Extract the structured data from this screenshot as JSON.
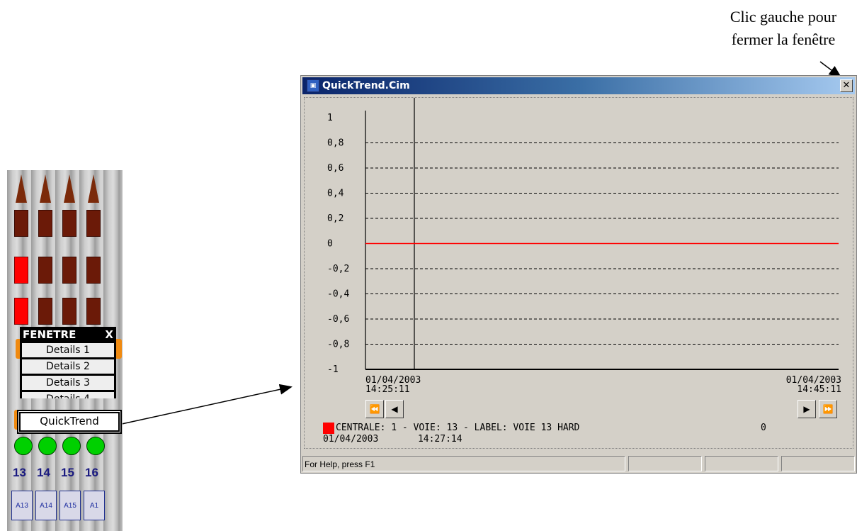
{
  "annotation": {
    "line1": "Clic gauche pour",
    "line2": "fermer la fenêtre"
  },
  "strip": {
    "menu": {
      "title": "FENETRE",
      "close_glyph": "X",
      "items": [
        "Details 1",
        "Details 2",
        "Details 3",
        "Details 4"
      ],
      "selected": "QuickTrend"
    },
    "channels": [
      {
        "num": "13",
        "tag": "A13"
      },
      {
        "num": "14",
        "tag": "A14"
      },
      {
        "num": "15",
        "tag": "A15"
      },
      {
        "num": "16",
        "tag": "A1"
      }
    ]
  },
  "window": {
    "title": "QuickTrend.Cim",
    "close_glyph": "✕",
    "legend": "CENTRALE: 1 - VOIE: 13 - LABEL: VOIE 13 HARD",
    "legend_value": "0",
    "legend_color": "#ff0000",
    "cursor_date": "01/04/2003",
    "cursor_time": "14:27:14",
    "status_text": "For Help, press F1",
    "nav": {
      "first": "⏪",
      "prev": "◀",
      "next": "▶",
      "last": "⏩"
    }
  },
  "chart_data": {
    "type": "line",
    "title": "",
    "xlabel": "",
    "ylabel": "",
    "ylim": [
      -1,
      1
    ],
    "yticks": [
      "1",
      "0,8",
      "0,6",
      "0,4",
      "0,2",
      "0",
      "-0,2",
      "-0,4",
      "-0,6",
      "-0,8",
      "-1"
    ],
    "x_start": {
      "date": "01/04/2003",
      "time": "14:25:11"
    },
    "x_end": {
      "date": "01/04/2003",
      "time": "14:45:11"
    },
    "cursor": "14:27:14",
    "grid": true,
    "series": [
      {
        "name": "CENTRALE: 1 - VOIE: 13 - LABEL: VOIE 13 HARD",
        "color": "#ff0000",
        "values": [
          0,
          0
        ]
      }
    ]
  }
}
